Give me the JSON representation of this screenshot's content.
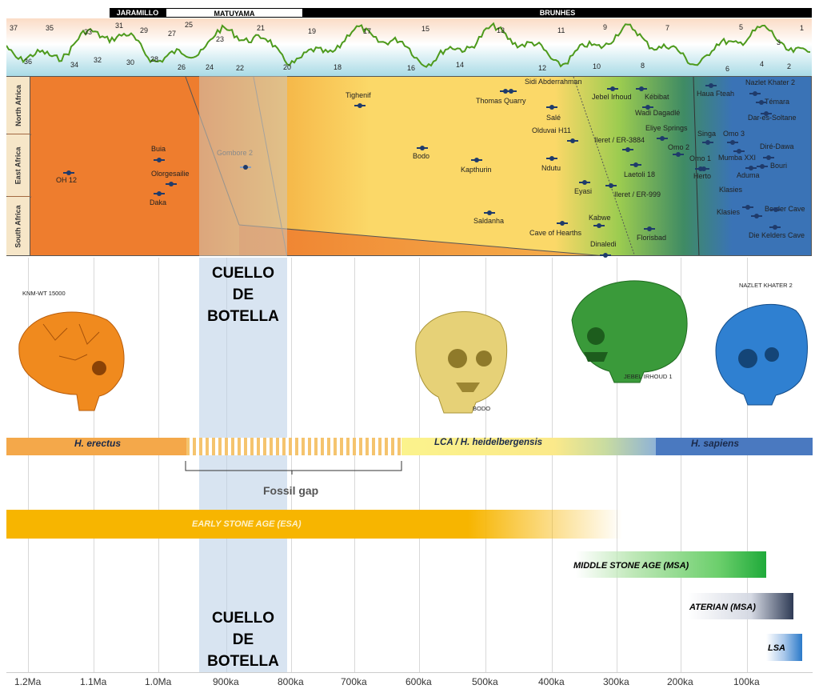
{
  "polarity": {
    "jaramillo": "JARAMILLO",
    "matuyama": "MATUYAMA",
    "brunhes": "BRUNHES"
  },
  "isotope_stages": [
    "37",
    "36",
    "35",
    "34",
    "33",
    "32",
    "31",
    "30",
    "29",
    "28",
    "27",
    "26",
    "25",
    "24",
    "23",
    "22",
    "21",
    "20",
    "19",
    "18",
    "17",
    "16",
    "15",
    "14",
    "13",
    "12",
    "11",
    "10",
    "9",
    "8",
    "7",
    "6",
    "5",
    "4",
    "3",
    "2",
    "1"
  ],
  "regions": {
    "north": "North Africa",
    "east": "East Africa",
    "south": "South Africa"
  },
  "sites": [
    "Sidi Abderrahman",
    "Nazlet Khater 2",
    "Tighenif",
    "Thomas Quarry",
    "Jebel Irhoud",
    "Kébibat",
    "Haua Fteah",
    "Témara",
    "Salé",
    "Wadi Dagadlé",
    "Dar-es-Soltane",
    "Olduvai H11",
    "Eliye Springs",
    "Singa",
    "Omo 3",
    "Buia",
    "Gombore 2",
    "Ileret / ER-3884",
    "Omo 2",
    "Diré-Dawa",
    "Bodo",
    "Mumba XXI",
    "Omo 1",
    "Bouri",
    "OH 12",
    "Kapthurin",
    "Ndutu",
    "Laetoli 18",
    "Herto",
    "Aduma",
    "Olorgesailie",
    "Eyasi",
    "Ileret / ER-999",
    "Daka",
    "Klasies",
    "Klasies",
    "Border Cave",
    "Saldanha",
    "Kabwe",
    "Cave of Hearths",
    "Florisbad",
    "Die Kelders Cave",
    "Dinaledi"
  ],
  "bottleneck": {
    "lines": [
      "CUELLO",
      "DE",
      "BOTELLA"
    ]
  },
  "skulls": {
    "knm": "KNM-WT 15000",
    "bodo": "BODO",
    "irhoud": "JEBEL IRHOUD 1",
    "nazlet": "NAZLET KHATER 2"
  },
  "species": {
    "erectus": "H. erectus",
    "lca": "LCA / H. heidelbergensis",
    "sapiens": "H. sapiens"
  },
  "fossil_gap": "Fossil gap",
  "industries": {
    "esa": "EARLY STONE AGE (ESA)",
    "msa": "MIDDLE STONE AGE (MSA)",
    "aterian": "ATERIAN (MSA)",
    "lsa": "LSA"
  },
  "axis_ticks": [
    "1.2Ma",
    "1.1Ma",
    "1.0Ma",
    "900ka",
    "800ka",
    "700ka",
    "600ka",
    "500ka",
    "400ka",
    "300ka",
    "200ka",
    "100ka"
  ],
  "colors": {
    "erectus": "#f4a84a",
    "lca": "#fbe98a",
    "sapiens": "#4a79c0",
    "esa": "#f7b500",
    "msa": "#2fb34a",
    "curve": "#4d9a1c"
  }
}
